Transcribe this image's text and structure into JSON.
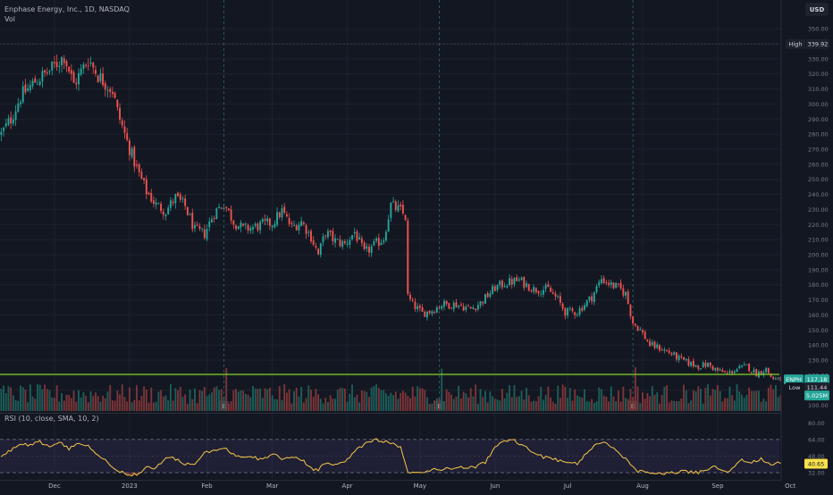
{
  "header": {
    "symbol_title": "Enphase Energy, Inc., 1D, NASDAQ",
    "volume_label": "Vol",
    "currency_button": "USD"
  },
  "indicator": {
    "label": "RSI (10, close, SMA, 10, 2)"
  },
  "price_labels": {
    "high_tag": "High",
    "high_value": "339.92",
    "symbol_tag": "ENPH",
    "last_value": "117.18",
    "low_tag": "Low",
    "low_value": "111.44",
    "volume_value": "5.025M",
    "rsi_value": "40.65"
  },
  "earnings_marker": "E",
  "colors": {
    "background": "#131722",
    "up": "#26a69a",
    "down": "#ef5350",
    "rsi_line": "#f7c948",
    "horizontal_line": "#7ed321",
    "rsi_band": "#7e57c2"
  },
  "chart_data": {
    "type": "candlestick",
    "series_name": "ENPH",
    "price_axis": {
      "ticks": [
        100,
        110,
        120,
        130,
        140,
        150,
        160,
        170,
        180,
        190,
        200,
        210,
        220,
        230,
        240,
        250,
        260,
        270,
        280,
        290,
        300,
        310,
        320,
        330,
        340,
        350
      ],
      "range": [
        95,
        356
      ]
    },
    "x_axis": {
      "tick_labels": [
        "Dec",
        "2023",
        "Feb",
        "Mar",
        "Apr",
        "May",
        "Jun",
        "Jul",
        "Aug",
        "Sep",
        "Oct"
      ],
      "tick_days": [
        22,
        53,
        85,
        112,
        143,
        173,
        204,
        234,
        265,
        296,
        326
      ]
    },
    "high_marker": 339.92,
    "low_marker": 111.44,
    "last_price": 117.18,
    "horizontal_level": 120.5,
    "earnings_days": [
      92,
      181,
      261
    ],
    "price_keypoints": [
      [
        0,
        280
      ],
      [
        4,
        290
      ],
      [
        8,
        305
      ],
      [
        14,
        315
      ],
      [
        20,
        322
      ],
      [
        26,
        332
      ],
      [
        30,
        313
      ],
      [
        36,
        330
      ],
      [
        40,
        319
      ],
      [
        46,
        309
      ],
      [
        48,
        295
      ],
      [
        52,
        275
      ],
      [
        56,
        257
      ],
      [
        60,
        242
      ],
      [
        64,
        233
      ],
      [
        68,
        229
      ],
      [
        72,
        238
      ],
      [
        76,
        232
      ],
      [
        80,
        216
      ],
      [
        84,
        214
      ],
      [
        88,
        228
      ],
      [
        92,
        234
      ],
      [
        96,
        222
      ],
      [
        100,
        217
      ],
      [
        104,
        218
      ],
      [
        108,
        220
      ],
      [
        112,
        221
      ],
      [
        116,
        229
      ],
      [
        120,
        218
      ],
      [
        124,
        222
      ],
      [
        128,
        212
      ],
      [
        131,
        200
      ],
      [
        134,
        215
      ],
      [
        138,
        209
      ],
      [
        142,
        207
      ],
      [
        146,
        215
      ],
      [
        150,
        201
      ],
      [
        154,
        206
      ],
      [
        158,
        211
      ],
      [
        161,
        233
      ],
      [
        165,
        229
      ],
      [
        167,
        225
      ],
      [
        168,
        172
      ],
      [
        170,
        167
      ],
      [
        174,
        161
      ],
      [
        178,
        163
      ],
      [
        182,
        167
      ],
      [
        188,
        167
      ],
      [
        194,
        164
      ],
      [
        198,
        168
      ],
      [
        204,
        178
      ],
      [
        208,
        181
      ],
      [
        214,
        183
      ],
      [
        220,
        177
      ],
      [
        226,
        177
      ],
      [
        230,
        170
      ],
      [
        233,
        162
      ],
      [
        238,
        162
      ],
      [
        244,
        172
      ],
      [
        248,
        184
      ],
      [
        252,
        180
      ],
      [
        255,
        178
      ],
      [
        258,
        174
      ],
      [
        261,
        155
      ],
      [
        264,
        150
      ],
      [
        268,
        140
      ],
      [
        272,
        138
      ],
      [
        276,
        135
      ],
      [
        280,
        131
      ],
      [
        284,
        128
      ],
      [
        288,
        126
      ],
      [
        292,
        127
      ],
      [
        296,
        123
      ],
      [
        300,
        121
      ],
      [
        304,
        124
      ],
      [
        308,
        126
      ],
      [
        312,
        121
      ],
      [
        316,
        124
      ],
      [
        318,
        119
      ],
      [
        320,
        117
      ]
    ],
    "rsi_axis": {
      "ticks": [
        32,
        48,
        64,
        80
      ],
      "range": [
        26,
        88
      ],
      "band": [
        32,
        64
      ]
    },
    "rsi_keypoints": [
      [
        0,
        46
      ],
      [
        4,
        54
      ],
      [
        8,
        60
      ],
      [
        12,
        58
      ],
      [
        16,
        62
      ],
      [
        20,
        57
      ],
      [
        24,
        61
      ],
      [
        28,
        55
      ],
      [
        32,
        60
      ],
      [
        36,
        58
      ],
      [
        40,
        48
      ],
      [
        44,
        42
      ],
      [
        48,
        35
      ],
      [
        52,
        30
      ],
      [
        56,
        30
      ],
      [
        60,
        37
      ],
      [
        64,
        36
      ],
      [
        68,
        47
      ],
      [
        72,
        45
      ],
      [
        76,
        40
      ],
      [
        80,
        40
      ],
      [
        84,
        51
      ],
      [
        88,
        54
      ],
      [
        92,
        56
      ],
      [
        96,
        49
      ],
      [
        100,
        46
      ],
      [
        104,
        47
      ],
      [
        108,
        44
      ],
      [
        112,
        51
      ],
      [
        116,
        46
      ],
      [
        120,
        48
      ],
      [
        124,
        45
      ],
      [
        128,
        36
      ],
      [
        131,
        35
      ],
      [
        134,
        42
      ],
      [
        138,
        40
      ],
      [
        142,
        43
      ],
      [
        146,
        52
      ],
      [
        150,
        60
      ],
      [
        154,
        64
      ],
      [
        158,
        62
      ],
      [
        161,
        61
      ],
      [
        165,
        56
      ],
      [
        168,
        32
      ],
      [
        172,
        31
      ],
      [
        178,
        35
      ],
      [
        184,
        36
      ],
      [
        190,
        37
      ],
      [
        196,
        37
      ],
      [
        200,
        42
      ],
      [
        204,
        56
      ],
      [
        208,
        63
      ],
      [
        212,
        63
      ],
      [
        216,
        57
      ],
      [
        220,
        52
      ],
      [
        224,
        47
      ],
      [
        230,
        44
      ],
      [
        234,
        43
      ],
      [
        238,
        40
      ],
      [
        242,
        52
      ],
      [
        246,
        60
      ],
      [
        250,
        60
      ],
      [
        254,
        53
      ],
      [
        258,
        45
      ],
      [
        262,
        34
      ],
      [
        266,
        32
      ],
      [
        270,
        31
      ],
      [
        276,
        32
      ],
      [
        282,
        33
      ],
      [
        288,
        32
      ],
      [
        294,
        38
      ],
      [
        300,
        33
      ],
      [
        306,
        44
      ],
      [
        310,
        42
      ],
      [
        314,
        45
      ],
      [
        318,
        39
      ],
      [
        320,
        41
      ]
    ],
    "rsi_last": 40.65
  }
}
